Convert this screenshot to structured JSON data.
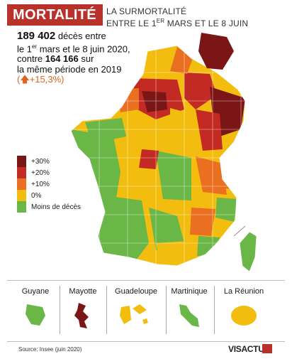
{
  "header": {
    "title": "MORTALITÉ",
    "subtitle_line1": "LA SURMORTALITÉ",
    "subtitle_line2_pre": "ENTRE LE 1",
    "subtitle_line2_sup": "ER",
    "subtitle_line2_post": " MARS ET LE 8 JUIN"
  },
  "stats": {
    "deaths_2020": "189 402",
    "line1_rest": " décès entre",
    "line2_pre": "le 1",
    "line2_sup": "er",
    "line2_post": " mars et le 8 juin 2020,",
    "line3_pre": "contre ",
    "deaths_2019": "164 166",
    "line3_post": " sur",
    "line4": "la même période en 2019",
    "change": "(🡅+15,3%)"
  },
  "legend": [
    {
      "label": "+30%",
      "color": "#7a1616"
    },
    {
      "label": "+20%",
      "color": "#c42a24"
    },
    {
      "label": "+10%",
      "color": "#ea6f21"
    },
    {
      "label": "0%",
      "color": "#f2bd0f"
    },
    {
      "label": "Moins de décès",
      "color": "#6ab646"
    }
  ],
  "territories": [
    {
      "name": "Guyane",
      "color": "#6ab646"
    },
    {
      "name": "Mayotte",
      "color": "#7a1616"
    },
    {
      "name": "Guadeloupe",
      "color": "#f2bd0f"
    },
    {
      "name": "Martinique",
      "color": "#6ab646"
    },
    {
      "name": "La Réunion",
      "color": "#f2bd0f"
    }
  ],
  "footer": {
    "source": "Source: Insee (juin 2020)",
    "brand": "VISACTU"
  }
}
